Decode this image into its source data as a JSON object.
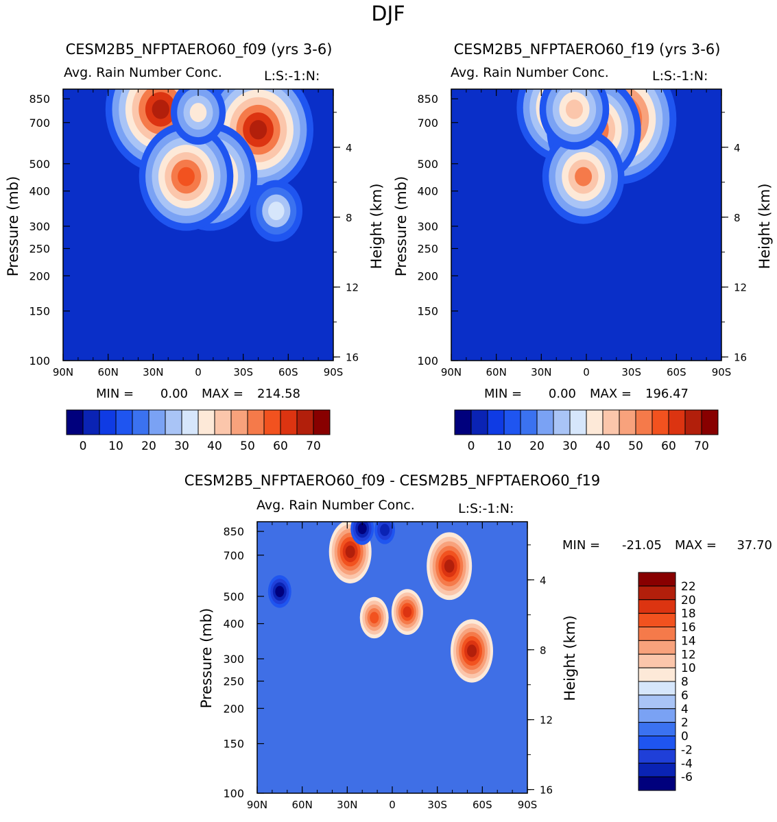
{
  "page_title": "DJF",
  "colors": {
    "panel_bg": "#0a2fc8",
    "diff_bg": "#3f6fe6",
    "abs_palette": [
      "#00007d",
      "#0a23b4",
      "#0f3be4",
      "#1f55f0",
      "#3b72f0",
      "#7aa2f4",
      "#a9c4f6",
      "#d6e6fb",
      "#fde9d8",
      "#fbc6ab",
      "#f8a27c",
      "#f57a4a",
      "#f2521f",
      "#dc3411",
      "#b21f0b",
      "#880000"
    ],
    "diff_palette": [
      "#00007d",
      "#0a23b4",
      "#1f3fd8",
      "#1f55f0",
      "#3b72f0",
      "#7aa2f4",
      "#a9c4f6",
      "#d6e6fb",
      "#fde9d8",
      "#fbc6ab",
      "#f8a27c",
      "#f57a4a",
      "#f2521f",
      "#dc3411",
      "#b21f0b",
      "#880000"
    ]
  },
  "chart_data": [
    {
      "type": "heatmap",
      "title": "CESM2B5_NFPTAERO60_f09 (yrs 3-6)",
      "subtitle": "Avg. Rain Number Conc.",
      "level_label": "L:S:-1:N:",
      "ylabel": "Pressure (mb)",
      "ylabel_right": "Height (km)",
      "x_ticks": [
        "90N",
        "60N",
        "30N",
        "0",
        "30S",
        "60S",
        "90S"
      ],
      "y_ticks": [
        "100",
        "150",
        "200",
        "250",
        "300",
        "400",
        "500",
        "700",
        "850"
      ],
      "y_ticks_right": [
        "16",
        "12",
        "8",
        "4"
      ],
      "stats": {
        "min_label": "MIN =",
        "min": "0.00",
        "max_label": "MAX =",
        "max": "214.58"
      },
      "colorbar_labels": [
        "0",
        "10",
        "20",
        "30",
        "40",
        "50",
        "60",
        "70"
      ],
      "blobs": [
        {
          "lat": 25,
          "p": 780,
          "value": 75
        },
        {
          "lat": -25,
          "p": 720,
          "value": 80
        },
        {
          "lat": -40,
          "p": 660,
          "value": 75
        },
        {
          "lat": -8,
          "p": 450,
          "value": 62
        },
        {
          "lat": 8,
          "p": 450,
          "value": 62
        },
        {
          "lat": 0,
          "p": 760,
          "value": 30
        },
        {
          "lat": -52,
          "p": 340,
          "value": 28
        }
      ]
    },
    {
      "type": "heatmap",
      "title": "CESM2B5_NFPTAERO60_f19 (yrs 3-6)",
      "subtitle": "Avg. Rain Number Conc.",
      "level_label": "L:S:-1:N:",
      "ylabel": "Pressure (mb)",
      "ylabel_right": "Height (km)",
      "x_ticks": [
        "90N",
        "60N",
        "30N",
        "0",
        "30S",
        "60S",
        "90S"
      ],
      "y_ticks": [
        "100",
        "150",
        "200",
        "250",
        "300",
        "400",
        "500",
        "700",
        "850"
      ],
      "y_ticks_right": [
        "16",
        "12",
        "8",
        "4"
      ],
      "stats": {
        "min_label": "MIN =",
        "min": "0.00",
        "max_label": "MAX =",
        "max": "196.47"
      },
      "colorbar_labels": [
        "0",
        "10",
        "20",
        "30",
        "40",
        "50",
        "60",
        "70"
      ],
      "blobs": [
        {
          "lat": 15,
          "p": 790,
          "value": 62
        },
        {
          "lat": -22,
          "p": 720,
          "value": 78
        },
        {
          "lat": -5,
          "p": 660,
          "value": 62
        },
        {
          "lat": 2,
          "p": 450,
          "value": 52
        },
        {
          "lat": 8,
          "p": 780,
          "value": 42
        }
      ]
    },
    {
      "type": "heatmap",
      "title": "CESM2B5_NFPTAERO60_f09 - CESM2B5_NFPTAERO60_f19",
      "subtitle": "Avg. Rain Number Conc.",
      "level_label": "L:S:-1:N:",
      "ylabel": "Pressure (mb)",
      "ylabel_right": "Height (km)",
      "x_ticks": [
        "90N",
        "60N",
        "30N",
        "0",
        "30S",
        "60S",
        "90S"
      ],
      "y_ticks": [
        "100",
        "150",
        "200",
        "250",
        "300",
        "400",
        "500",
        "700",
        "850"
      ],
      "y_ticks_right": [
        "16",
        "12",
        "8",
        "4"
      ],
      "stats": {
        "min_label": "MIN =",
        "min": "-21.05",
        "max_label": "MAX =",
        "max": "37.70"
      },
      "colorbar_labels": [
        "22",
        "20",
        "18",
        "16",
        "14",
        "12",
        "10",
        "8",
        "6",
        "4",
        "2",
        "0",
        "-2",
        "-4",
        "-6"
      ],
      "blobs": [
        {
          "lat": 28,
          "p": 720,
          "value": 22
        },
        {
          "lat": -38,
          "p": 640,
          "value": 24
        },
        {
          "lat": -53,
          "p": 320,
          "value": 22
        },
        {
          "lat": 12,
          "p": 420,
          "value": 12
        },
        {
          "lat": -10,
          "p": 440,
          "value": 14
        },
        {
          "lat": 75,
          "p": 520,
          "value": -8
        },
        {
          "lat": 20,
          "p": 870,
          "value": -8
        },
        {
          "lat": 5,
          "p": 860,
          "value": -6
        }
      ]
    }
  ]
}
